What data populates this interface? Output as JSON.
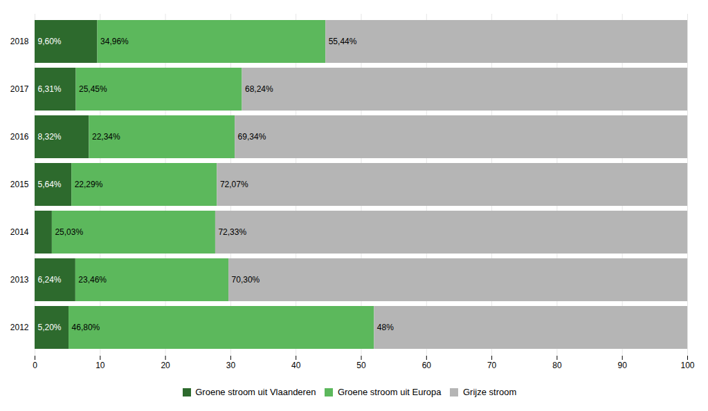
{
  "chart_data": {
    "type": "bar",
    "orientation": "horizontal",
    "stacked": true,
    "categories": [
      "2012",
      "2013",
      "2014",
      "2015",
      "2016",
      "2017",
      "2018"
    ],
    "series": [
      {
        "name": "Groene stroom uit Vlaanderen",
        "color": "#2d6a2d",
        "values": [
          5.2,
          6.24,
          2.64,
          5.64,
          8.32,
          6.31,
          9.6
        ],
        "value_labels": [
          "5,20%",
          "6,24%",
          null,
          "5,64%",
          "8,32%",
          "6,31%",
          "9,60%"
        ]
      },
      {
        "name": "Groene stroom uit Europa",
        "color": "#5cb85c",
        "values": [
          46.8,
          23.46,
          25.03,
          22.29,
          22.34,
          25.45,
          34.96
        ],
        "value_labels": [
          "46,80%",
          "23,46%",
          "25,03%",
          "22,29%",
          "22,34%",
          "25,45%",
          "34,96%"
        ]
      },
      {
        "name": "Grijze stroom",
        "color": "#b5b5b5",
        "values": [
          48.0,
          70.3,
          72.33,
          72.07,
          69.34,
          68.24,
          55.44
        ],
        "value_labels": [
          "48%",
          "70,30%",
          "72,33%",
          "72,07%",
          "69,34%",
          "68,24%",
          "55,44%"
        ]
      }
    ],
    "xlim": [
      0,
      100
    ],
    "xticks": [
      0,
      10,
      20,
      30,
      40,
      50,
      60,
      70,
      80,
      90,
      100
    ],
    "grid": true,
    "data_labels": true,
    "legend": "bottom"
  }
}
